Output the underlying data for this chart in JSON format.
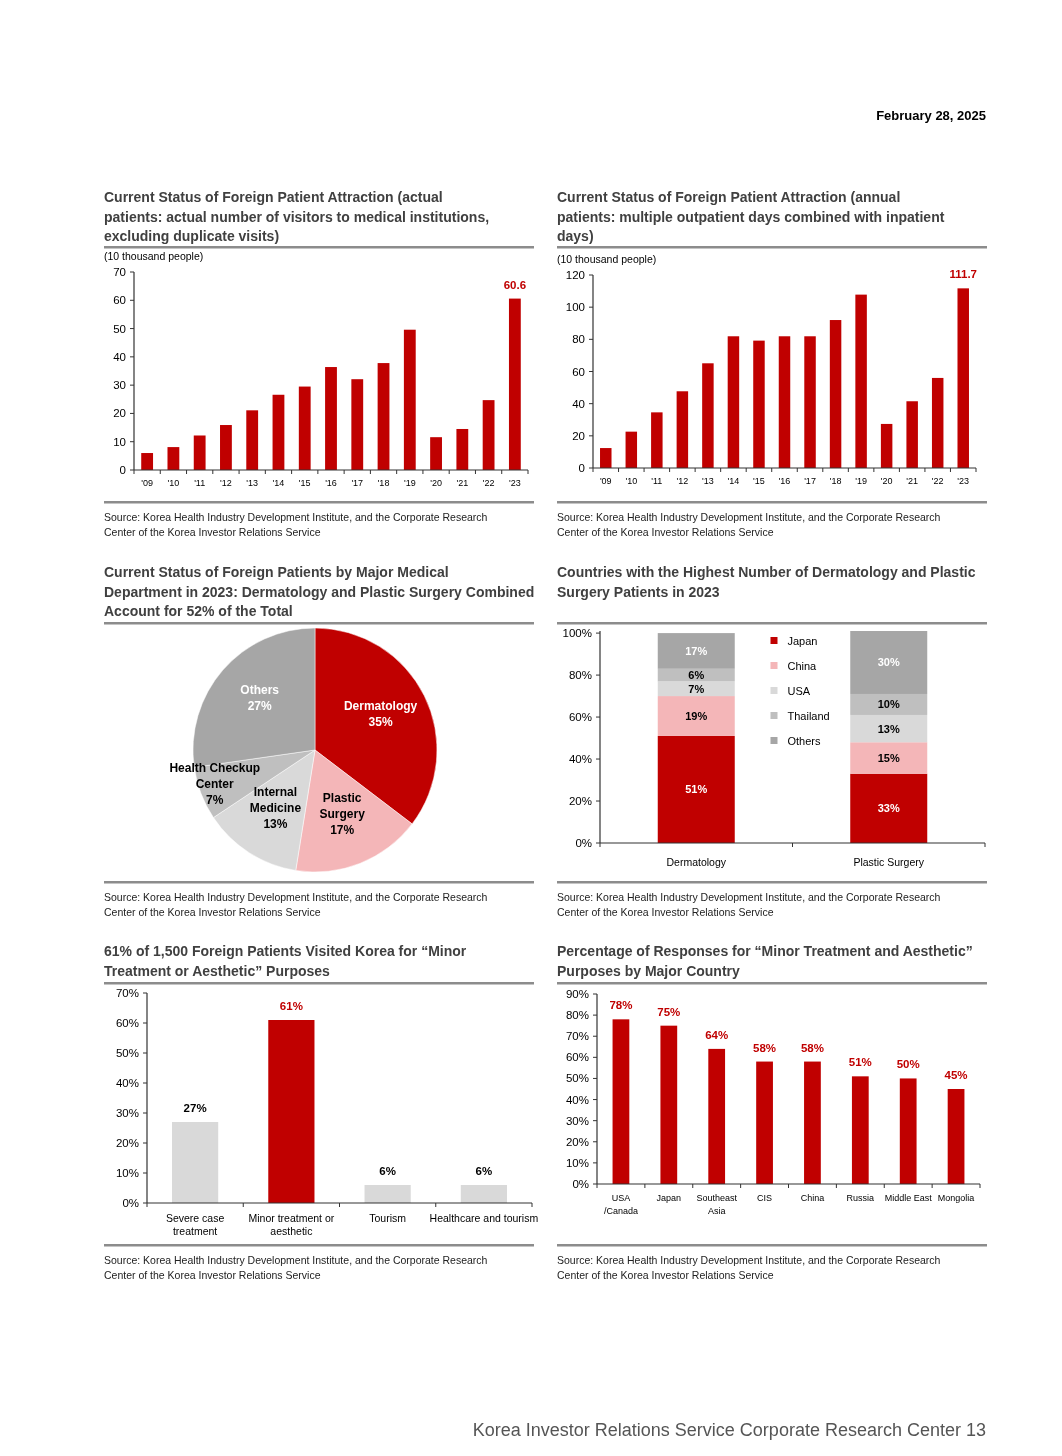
{
  "chart_data": [
    {
      "type": "bar",
      "title": "Current Status of Foreign Patient Attraction (actual patients: actual number of visitors to medical institutions, excluding duplicate visits)",
      "ylabel": "(10 thousand people)",
      "categories": [
        "'09",
        "'10",
        "'11",
        "'12",
        "'13",
        "'14",
        "'15",
        "'16",
        "'17",
        "'18",
        "'19",
        "'20",
        "'21",
        "'22",
        "'23"
      ],
      "values": [
        6.0,
        8.1,
        12.2,
        15.9,
        21.1,
        26.6,
        29.5,
        36.4,
        32.1,
        37.8,
        49.6,
        11.6,
        14.5,
        24.7,
        60.6
      ],
      "value_labels": [
        null,
        null,
        null,
        null,
        null,
        null,
        null,
        null,
        null,
        null,
        null,
        null,
        null,
        null,
        "60.6"
      ],
      "color": "#c00000",
      "ylim": [
        0,
        70
      ],
      "yticks": [
        0,
        10,
        20,
        30,
        40,
        50,
        60,
        70
      ],
      "annotations": [
        "Source: Korea Health Industry Development Institute, and the Corporate Research Center of the Korea Investor Relations Service",
        "February 28, 2025"
      ]
    },
    {
      "type": "bar",
      "title": "Current Status of Foreign Patient Attraction (annual patients: multiple outpatient days combined with inpatient days)",
      "ylabel": "(10 thousand people)",
      "categories": [
        "'09",
        "'10",
        "'11",
        "'12",
        "'13",
        "'14",
        "'15",
        "'16",
        "'17",
        "'18",
        "'19",
        "'20",
        "'21",
        "'22",
        "'23"
      ],
      "values": [
        12.4,
        22.6,
        34.6,
        47.7,
        65.1,
        81.9,
        79.2,
        81.9,
        81.9,
        92.0,
        107.8,
        27.4,
        41.5,
        56.0,
        111.7
      ],
      "value_labels": [
        null,
        null,
        null,
        null,
        null,
        null,
        null,
        null,
        null,
        null,
        null,
        null,
        null,
        null,
        "111.7"
      ],
      "color": "#c00000",
      "ylim": [
        0,
        120
      ],
      "yticks": [
        0,
        20,
        40,
        60,
        80,
        100,
        120
      ],
      "annotations": [
        "Source: Korea Health Industry Development Institute, and the Corporate Research Center of the Korea Investor Relations Service"
      ]
    },
    {
      "type": "pie",
      "title": "Current Status of Foreign Patients by Major Medical Department in 2023: Dermatology and Plastic Surgery Combined Account for 52% of the Total",
      "categories": [
        "Dermatology",
        "Plastic\nSurgery",
        "Internal\nMedicine",
        "Health Checkup\nCenter",
        "Others"
      ],
      "values": [
        35,
        17,
        13,
        7,
        27
      ],
      "value_labels": [
        "35%",
        "17%",
        "13%",
        "7%",
        "27%"
      ],
      "colors": [
        "#c00000",
        "#f4b6b8",
        "#d9d9d9",
        "#bfbfbf",
        "#a6a6a6"
      ],
      "annotations": [
        "Source: Korea Health Industry Development Institute, and the Corporate Research Center of the Korea Investor Relations Service"
      ]
    },
    {
      "type": "bar",
      "stacked": true,
      "title": "Countries with the Highest Number of Dermatology and Plastic Surgery Patients in 2023",
      "categories": [
        "Dermatology",
        "Plastic Surgery"
      ],
      "ylim": [
        0,
        101
      ],
      "yticks": [
        {
          "value": 0,
          "label": "0%"
        },
        {
          "value": 20,
          "label": "20%"
        },
        {
          "value": 40,
          "label": "40%"
        },
        {
          "value": 60,
          "label": "60%"
        },
        {
          "value": 80,
          "label": "80%"
        },
        {
          "value": 100,
          "label": "100%"
        }
      ],
      "legend": "top",
      "series": [
        {
          "name": "Japan",
          "color": "#c00000",
          "values": [
            51,
            33
          ],
          "value_labels": [
            "51%",
            "33%"
          ]
        },
        {
          "name": "China",
          "color": "#f4b6b8",
          "values": [
            19,
            15
          ],
          "value_labels": [
            "19%",
            "15%"
          ]
        },
        {
          "name": "USA",
          "color": "#d9d9d9",
          "values": [
            7,
            13
          ],
          "value_labels": [
            "7%",
            "13%"
          ]
        },
        {
          "name": "Thailand",
          "color": "#bfbfbf",
          "values": [
            6,
            10
          ],
          "value_labels": [
            "6%",
            "10%"
          ]
        },
        {
          "name": "Others",
          "color": "#a6a6a6",
          "values": [
            17,
            30
          ],
          "value_labels": [
            "17%",
            "30%"
          ]
        }
      ],
      "annotations": [
        "Source: Korea Health Industry Development Institute, and the Corporate Research Center of the Korea Investor Relations Service"
      ]
    },
    {
      "type": "bar",
      "title": "61% of 1,500 Foreign Patients Visited Korea for “Minor Treatment or Aesthetic” Purposes",
      "categories": [
        "Severe case\ntreatment",
        "Minor treatment or\naesthetic",
        "Tourism",
        "Healthcare and tourism"
      ],
      "values": [
        27,
        61,
        6,
        6
      ],
      "value_labels": [
        "27%",
        "61%",
        "6%",
        "6%"
      ],
      "colors": [
        "#d9d9d9",
        "#c00000",
        "#d9d9d9",
        "#d9d9d9"
      ],
      "ylim": [
        0,
        70
      ],
      "yticks": [
        {
          "value": 0,
          "label": "0%"
        },
        {
          "value": 10,
          "label": "10%"
        },
        {
          "value": 20,
          "label": "20%"
        },
        {
          "value": 30,
          "label": "30%"
        },
        {
          "value": 40,
          "label": "40%"
        },
        {
          "value": 50,
          "label": "50%"
        },
        {
          "value": 60,
          "label": "60%"
        },
        {
          "value": 70,
          "label": "70%"
        }
      ],
      "annotations": [
        "Source: Korea Health Industry Development Institute, and the Corporate Research Center of the Korea Investor Relations Service"
      ]
    },
    {
      "type": "bar",
      "title": "Percentage of Responses for “Minor Treatment and Aesthetic” Purposes by Major Country",
      "categories": [
        "USA\n/Canada",
        "Japan",
        "Southeast\nAsia",
        "CIS",
        "China",
        "Russia",
        "Middle East",
        "Mongolia"
      ],
      "values": [
        78,
        75,
        64,
        58,
        58,
        51,
        50,
        45
      ],
      "value_labels": [
        "78%",
        "75%",
        "64%",
        "58%",
        "58%",
        "51%",
        "50%",
        "45%"
      ],
      "color": "#c00000",
      "ylim": [
        0,
        90
      ],
      "yticks": [
        {
          "value": 0,
          "label": "0%"
        },
        {
          "value": 10,
          "label": "10%"
        },
        {
          "value": 20,
          "label": "20%"
        },
        {
          "value": 30,
          "label": "30%"
        },
        {
          "value": 40,
          "label": "40%"
        },
        {
          "value": 50,
          "label": "50%"
        },
        {
          "value": 60,
          "label": "60%"
        },
        {
          "value": 70,
          "label": "70%"
        },
        {
          "value": 80,
          "label": "80%"
        },
        {
          "value": 90,
          "label": "90%"
        }
      ],
      "annotations": [
        "Source: Korea Health Industry Development Institute, and the Corporate Research Center of the Korea Investor Relations Service",
        "Korea Investor Relations Service Corporate Research Center 13"
      ]
    }
  ]
}
